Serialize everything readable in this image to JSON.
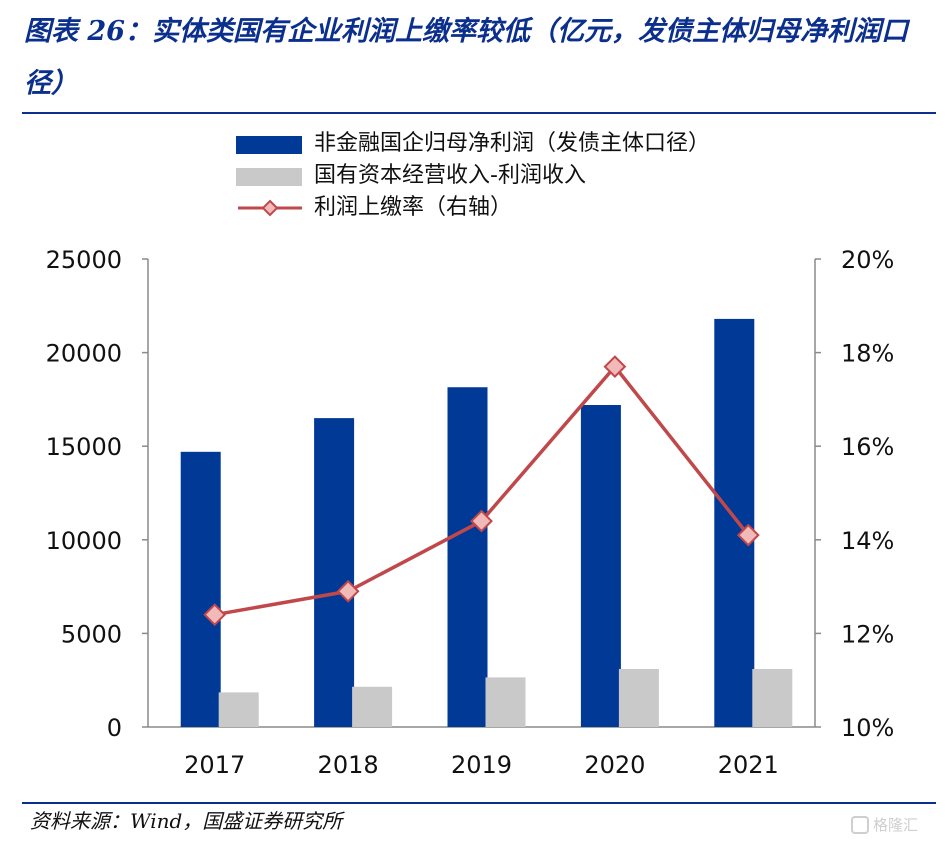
{
  "header": {
    "title": "图表 26：实体类国有企业利润上缴率较低（亿元，发债主体归母净利润口径）"
  },
  "colors": {
    "title": "#0b2f8c",
    "bar_primary": "#003a96",
    "bar_secondary": "#c9c9c9",
    "line": "#c0484b",
    "marker_fill": "#f2b9b9"
  },
  "legend": {
    "items": [
      {
        "label": "非金融国企归母净利润（发债主体口径）"
      },
      {
        "label": "国有资本经营收入-利润收入"
      },
      {
        "label": "利润上缴率（右轴）"
      }
    ]
  },
  "chart_data": {
    "type": "bar",
    "title": "图表 26：实体类国有企业利润上缴率较低（亿元，发债主体归母净利润口径）",
    "categories": [
      "2017",
      "2018",
      "2019",
      "2020",
      "2021"
    ],
    "series": [
      {
        "name": "非金融国企归母净利润（发债主体口径）",
        "type": "bar",
        "axis": "left",
        "values": [
          14700,
          16500,
          18150,
          17200,
          21800
        ]
      },
      {
        "name": "国有资本经营收入-利润收入",
        "type": "bar",
        "axis": "left",
        "values": [
          1850,
          2150,
          2650,
          3100,
          3100
        ]
      },
      {
        "name": "利润上缴率（右轴）",
        "type": "line",
        "axis": "right",
        "marker": "diamond",
        "values": [
          12.4,
          12.9,
          14.4,
          17.7,
          14.1
        ]
      }
    ],
    "y_left": {
      "lim": [
        0,
        25000
      ],
      "ticks": [
        "0",
        "5000",
        "10000",
        "15000",
        "20000",
        "25000"
      ]
    },
    "y_right": {
      "lim": [
        10,
        20
      ],
      "ticks": [
        "10%",
        "12%",
        "14%",
        "16%",
        "18%",
        "20%"
      ]
    },
    "grid": false,
    "legend_position": "top-left"
  },
  "footer": {
    "source": "资料来源：Wind，国盛证券研究所",
    "watermark": "格隆汇"
  }
}
